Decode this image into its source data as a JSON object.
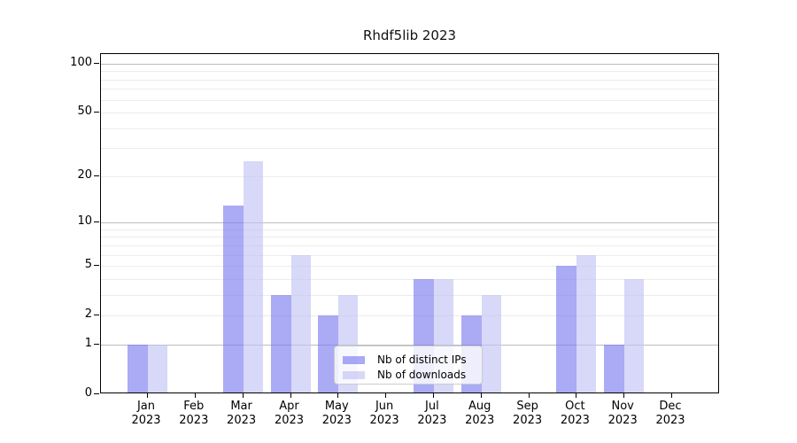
{
  "title": "Rhdf5lib 2023",
  "chart_data": {
    "type": "bar",
    "title": "Rhdf5lib 2023",
    "categories": [
      "Jan",
      "Feb",
      "Mar",
      "Apr",
      "May",
      "Jun",
      "Jul",
      "Aug",
      "Sep",
      "Oct",
      "Nov",
      "Dec"
    ],
    "category_year": "2023",
    "series": [
      {
        "name": "Nb of distinct IPs",
        "color": "rgba(118,118,239,0.62)",
        "values": [
          1,
          0,
          13,
          3,
          2,
          0,
          4,
          2,
          0,
          5,
          1,
          0
        ]
      },
      {
        "name": "Nb of downloads",
        "color": "rgba(192,192,244,0.62)",
        "values": [
          1,
          0,
          25,
          6,
          3,
          0,
          4,
          3,
          0,
          6,
          4,
          0
        ]
      }
    ],
    "xlabel": "",
    "ylabel": "",
    "y_axis": {
      "scale": "log10(1+y)",
      "tick_values": [
        0,
        1,
        2,
        5,
        10,
        20,
        50,
        100
      ],
      "major_grid_values": [
        1,
        10,
        100
      ],
      "minor_grid_values": [
        2,
        3,
        4,
        5,
        6,
        7,
        8,
        9,
        20,
        30,
        40,
        50,
        60,
        70,
        80,
        90
      ],
      "top_value": 114.5,
      "ylim": [
        0,
        114.5
      ]
    },
    "legend": {
      "position": "inside-bottom-center",
      "entries": [
        "Nb of distinct IPs",
        "Nb of downloads"
      ]
    },
    "grid": "on"
  },
  "colors": {
    "background": "#ffffff",
    "bar_distinct_ips": "rgba(118,118,239,0.62)",
    "bar_downloads": "rgba(192,192,244,0.62)",
    "major_gridline": "#bdbdbd",
    "minor_gridline": "#ececec",
    "axis_spine": "#000000",
    "legend_border": "#cccccc",
    "legend_background": "rgba(255,255,255,0.8)",
    "text": "#111111"
  }
}
